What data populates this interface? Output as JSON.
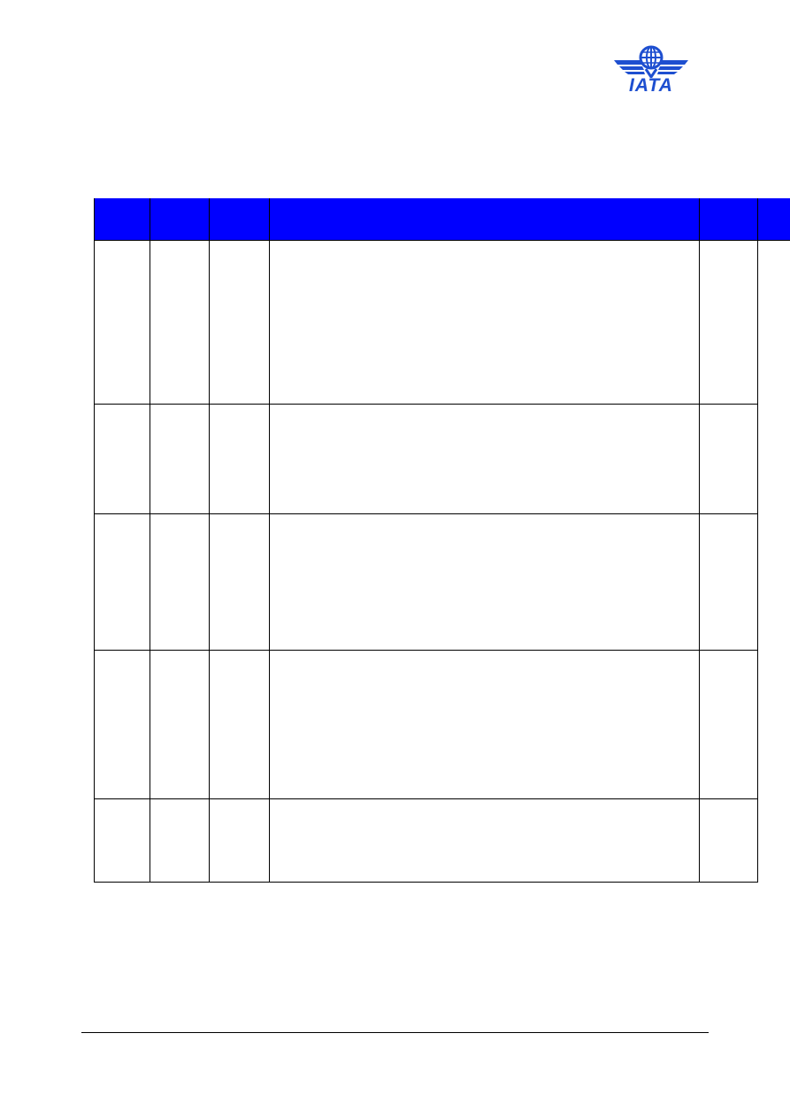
{
  "header": {
    "logo": {
      "text": "IATA",
      "brand_color": "#1e4fd0",
      "icon": "iata-globe-wings-logo"
    }
  },
  "table": {
    "header_color": "#0000ff",
    "grid_color": "#000000",
    "columns": [
      "",
      "",
      "",
      "",
      "",
      ""
    ],
    "rows": [
      [
        "",
        "",
        "",
        "",
        "",
        ""
      ],
      [
        "",
        "",
        "",
        "",
        "",
        ""
      ],
      [
        "",
        "",
        "",
        "",
        "",
        ""
      ],
      [
        "",
        "",
        "",
        "",
        "",
        ""
      ],
      [
        "",
        "",
        "",
        "",
        "",
        ""
      ]
    ]
  },
  "footer": {
    "text": ""
  }
}
